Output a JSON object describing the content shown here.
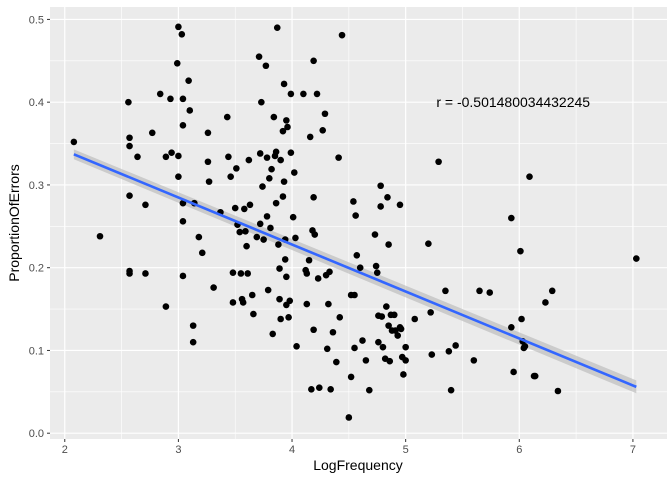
{
  "chart_data": {
    "type": "scatter",
    "title": "",
    "xlabel": "LogFrequency",
    "ylabel": "ProportionOfErrors",
    "xlim": [
      1.87,
      7.3
    ],
    "ylim": [
      -0.007,
      0.515
    ],
    "x_ticks": [
      2,
      3,
      4,
      5,
      6,
      7
    ],
    "y_ticks": [
      0.0,
      0.1,
      0.2,
      0.3,
      0.4,
      0.5
    ],
    "x_tick_labels": [
      "2",
      "3",
      "4",
      "5",
      "6",
      "7"
    ],
    "y_tick_labels": [
      "0.0",
      "0.1",
      "0.2",
      "0.3",
      "0.4",
      "0.5"
    ],
    "grid": true,
    "annotation": {
      "text": "r =  -0.501480034432245",
      "x": 5.27,
      "y": 0.4
    },
    "regression": {
      "x": [
        2.08,
        7.03
      ],
      "y": [
        0.337,
        0.056
      ],
      "se": 0.006
    },
    "colors": {
      "panel": "#ebebeb",
      "grid": "#ffffff",
      "point": "#000000",
      "line": "#3366ff",
      "ribbon": "#bebebe"
    },
    "points": [
      [
        2.08,
        0.352
      ],
      [
        2.31,
        0.238
      ],
      [
        2.56,
        0.4
      ],
      [
        2.57,
        0.357
      ],
      [
        2.57,
        0.347
      ],
      [
        2.57,
        0.287
      ],
      [
        2.57,
        0.196
      ],
      [
        2.57,
        0.193
      ],
      [
        2.64,
        0.334
      ],
      [
        2.71,
        0.276
      ],
      [
        2.71,
        0.193
      ],
      [
        2.77,
        0.363
      ],
      [
        2.84,
        0.41
      ],
      [
        2.89,
        0.334
      ],
      [
        2.89,
        0.153
      ],
      [
        2.93,
        0.404
      ],
      [
        2.94,
        0.339
      ],
      [
        2.99,
        0.447
      ],
      [
        3.0,
        0.491
      ],
      [
        3.0,
        0.335
      ],
      [
        3.0,
        0.31
      ],
      [
        3.03,
        0.482
      ],
      [
        3.04,
        0.404
      ],
      [
        3.04,
        0.372
      ],
      [
        3.04,
        0.278
      ],
      [
        3.04,
        0.256
      ],
      [
        3.04,
        0.19
      ],
      [
        3.09,
        0.426
      ],
      [
        3.1,
        0.39
      ],
      [
        3.13,
        0.13
      ],
      [
        3.13,
        0.11
      ],
      [
        3.14,
        0.278
      ],
      [
        3.18,
        0.237
      ],
      [
        3.21,
        0.218
      ],
      [
        3.26,
        0.363
      ],
      [
        3.26,
        0.328
      ],
      [
        3.27,
        0.304
      ],
      [
        3.31,
        0.176
      ],
      [
        3.37,
        0.267
      ],
      [
        3.43,
        0.382
      ],
      [
        3.44,
        0.334
      ],
      [
        3.46,
        0.31
      ],
      [
        3.48,
        0.194
      ],
      [
        3.48,
        0.158
      ],
      [
        3.5,
        0.272
      ],
      [
        3.51,
        0.32
      ],
      [
        3.52,
        0.252
      ],
      [
        3.54,
        0.243
      ],
      [
        3.55,
        0.193
      ],
      [
        3.56,
        0.162
      ],
      [
        3.57,
        0.158
      ],
      [
        3.58,
        0.271
      ],
      [
        3.59,
        0.244
      ],
      [
        3.6,
        0.226
      ],
      [
        3.61,
        0.193
      ],
      [
        3.62,
        0.33
      ],
      [
        3.63,
        0.276
      ],
      [
        3.65,
        0.167
      ],
      [
        3.66,
        0.144
      ],
      [
        3.69,
        0.237
      ],
      [
        3.71,
        0.455
      ],
      [
        3.72,
        0.338
      ],
      [
        3.72,
        0.253
      ],
      [
        3.73,
        0.4
      ],
      [
        3.74,
        0.298
      ],
      [
        3.75,
        0.234
      ],
      [
        3.77,
        0.444
      ],
      [
        3.78,
        0.333
      ],
      [
        3.78,
        0.262
      ],
      [
        3.79,
        0.173
      ],
      [
        3.8,
        0.308
      ],
      [
        3.81,
        0.248
      ],
      [
        3.82,
        0.319
      ],
      [
        3.83,
        0.12
      ],
      [
        3.84,
        0.382
      ],
      [
        3.85,
        0.335
      ],
      [
        3.86,
        0.34
      ],
      [
        3.86,
        0.278
      ],
      [
        3.87,
        0.49
      ],
      [
        3.88,
        0.228
      ],
      [
        3.89,
        0.199
      ],
      [
        3.89,
        0.162
      ],
      [
        3.9,
        0.33
      ],
      [
        3.9,
        0.138
      ],
      [
        3.92,
        0.365
      ],
      [
        3.92,
        0.286
      ],
      [
        3.93,
        0.422
      ],
      [
        3.93,
        0.304
      ],
      [
        3.94,
        0.234
      ],
      [
        3.94,
        0.21
      ],
      [
        3.95,
        0.378
      ],
      [
        3.95,
        0.189
      ],
      [
        3.95,
        0.155
      ],
      [
        3.96,
        0.37
      ],
      [
        3.97,
        0.14
      ],
      [
        3.98,
        0.16
      ],
      [
        3.99,
        0.41
      ],
      [
        3.99,
        0.339
      ],
      [
        4.01,
        0.261
      ],
      [
        4.02,
        0.315
      ],
      [
        4.03,
        0.236
      ],
      [
        4.04,
        0.105
      ],
      [
        4.1,
        0.41
      ],
      [
        4.12,
        0.197
      ],
      [
        4.13,
        0.193
      ],
      [
        4.13,
        0.156
      ],
      [
        4.15,
        0.209
      ],
      [
        4.16,
        0.358
      ],
      [
        4.17,
        0.053
      ],
      [
        4.18,
        0.245
      ],
      [
        4.19,
        0.45
      ],
      [
        4.19,
        0.285
      ],
      [
        4.19,
        0.125
      ],
      [
        4.2,
        0.24
      ],
      [
        4.22,
        0.41
      ],
      [
        4.23,
        0.187
      ],
      [
        4.24,
        0.055
      ],
      [
        4.27,
        0.366
      ],
      [
        4.29,
        0.386
      ],
      [
        4.3,
        0.191
      ],
      [
        4.31,
        0.102
      ],
      [
        4.32,
        0.156
      ],
      [
        4.33,
        0.195
      ],
      [
        4.34,
        0.053
      ],
      [
        4.36,
        0.122
      ],
      [
        4.39,
        0.086
      ],
      [
        4.41,
        0.333
      ],
      [
        4.42,
        0.14
      ],
      [
        4.44,
        0.481
      ],
      [
        4.5,
        0.019
      ],
      [
        4.52,
        0.167
      ],
      [
        4.52,
        0.068
      ],
      [
        4.54,
        0.28
      ],
      [
        4.55,
        0.167
      ],
      [
        4.55,
        0.103
      ],
      [
        4.56,
        0.263
      ],
      [
        4.57,
        0.215
      ],
      [
        4.6,
        0.2
      ],
      [
        4.62,
        0.112
      ],
      [
        4.65,
        0.088
      ],
      [
        4.68,
        0.052
      ],
      [
        4.73,
        0.24
      ],
      [
        4.74,
        0.202
      ],
      [
        4.75,
        0.194
      ],
      [
        4.76,
        0.142
      ],
      [
        4.76,
        0.11
      ],
      [
        4.78,
        0.299
      ],
      [
        4.78,
        0.274
      ],
      [
        4.79,
        0.141
      ],
      [
        4.8,
        0.104
      ],
      [
        4.82,
        0.09
      ],
      [
        4.83,
        0.153
      ],
      [
        4.84,
        0.285
      ],
      [
        4.85,
        0.228
      ],
      [
        4.85,
        0.13
      ],
      [
        4.86,
        0.087
      ],
      [
        4.87,
        0.143
      ],
      [
        4.88,
        0.124
      ],
      [
        4.9,
        0.143
      ],
      [
        4.91,
        0.124
      ],
      [
        4.93,
        0.118
      ],
      [
        4.95,
        0.276
      ],
      [
        4.95,
        0.128
      ],
      [
        4.96,
        0.126
      ],
      [
        4.97,
        0.092
      ],
      [
        4.98,
        0.071
      ],
      [
        5.0,
        0.088
      ],
      [
        5.0,
        0.104
      ],
      [
        5.08,
        0.138
      ],
      [
        5.2,
        0.229
      ],
      [
        5.22,
        0.146
      ],
      [
        5.23,
        0.095
      ],
      [
        5.29,
        0.328
      ],
      [
        5.35,
        0.172
      ],
      [
        5.38,
        0.099
      ],
      [
        5.4,
        0.052
      ],
      [
        5.44,
        0.106
      ],
      [
        5.6,
        0.088
      ],
      [
        5.65,
        0.172
      ],
      [
        5.74,
        0.17
      ],
      [
        5.93,
        0.26
      ],
      [
        5.93,
        0.128
      ],
      [
        5.95,
        0.074
      ],
      [
        6.01,
        0.22
      ],
      [
        6.02,
        0.138
      ],
      [
        6.03,
        0.111
      ],
      [
        6.04,
        0.103
      ],
      [
        6.05,
        0.105
      ],
      [
        6.09,
        0.31
      ],
      [
        6.13,
        0.069
      ],
      [
        6.14,
        0.069
      ],
      [
        6.23,
        0.158
      ],
      [
        6.29,
        0.172
      ],
      [
        6.34,
        0.051
      ],
      [
        7.03,
        0.211
      ]
    ]
  }
}
